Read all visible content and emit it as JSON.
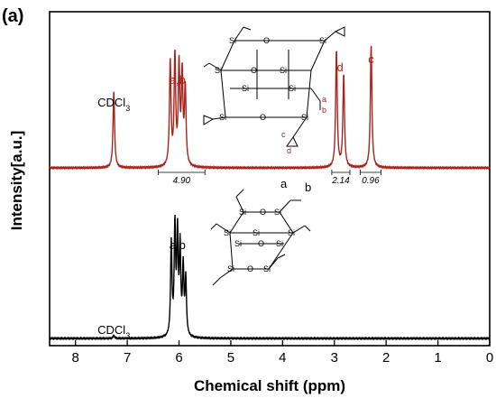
{
  "panel_label": "(a)",
  "colors": {
    "top_trace": "#a8231c",
    "bottom_trace": "#000000",
    "label_red": "#a8231c"
  },
  "chart_data": {
    "type": "line",
    "xlabel": "Chemical shift (ppm)",
    "ylabel": "Intensity[a.u.]",
    "xlim": [
      8.5,
      0
    ],
    "x_reversed": true,
    "x_ticks": [
      "8",
      "7",
      "6",
      "5",
      "4",
      "3",
      "2",
      "1",
      "0"
    ],
    "series": [
      {
        "color": "#a8231c",
        "peaks": [
          {
            "x": 7.26,
            "height": 0.45
          },
          {
            "x": 6.17,
            "height": 0.62
          },
          {
            "x": 6.08,
            "height": 0.65
          },
          {
            "x": 6.0,
            "height": 0.58
          },
          {
            "x": 5.94,
            "height": 0.53
          },
          {
            "x": 5.88,
            "height": 0.46
          },
          {
            "x": 2.96,
            "height": 0.7
          },
          {
            "x": 2.82,
            "height": 0.55
          },
          {
            "x": 2.29,
            "height": 0.73
          }
        ],
        "peak_labels": [
          {
            "text": "CDCl3",
            "x": 7.26,
            "color": "#000000"
          },
          {
            "text": "a,b",
            "x": 6.03,
            "color": "#a8231c"
          },
          {
            "text": "d",
            "x": 2.89,
            "color": "#a8231c"
          },
          {
            "text": "c",
            "x": 2.29,
            "color": "#a8231c"
          }
        ],
        "integrals": [
          {
            "range": [
              6.4,
              5.5
            ],
            "value": "4.90"
          },
          {
            "range": [
              3.05,
              2.7
            ],
            "value": "2.14"
          },
          {
            "range": [
              2.5,
              2.1
            ],
            "value": "0.96"
          }
        ]
      },
      {
        "color": "#000000",
        "peaks": [
          {
            "x": 7.26,
            "height": 0.02
          },
          {
            "x": 6.15,
            "height": 0.62
          },
          {
            "x": 6.08,
            "height": 0.72
          },
          {
            "x": 6.03,
            "height": 0.66
          },
          {
            "x": 5.98,
            "height": 0.58
          },
          {
            "x": 5.92,
            "height": 0.45
          },
          {
            "x": 5.87,
            "height": 0.38
          }
        ],
        "peak_labels": [
          {
            "text": "CDCl3",
            "x": 7.26,
            "color": "#000000"
          },
          {
            "text": "a,b",
            "x": 6.03,
            "color": "#000000"
          }
        ]
      }
    ]
  },
  "structures": {
    "top": {
      "atoms": [
        "Si",
        "O"
      ],
      "labels": [
        "a",
        "b",
        "c",
        "d"
      ]
    },
    "bottom": {
      "atoms": [
        "Si",
        "O"
      ],
      "labels": [
        "a",
        "b"
      ]
    }
  }
}
